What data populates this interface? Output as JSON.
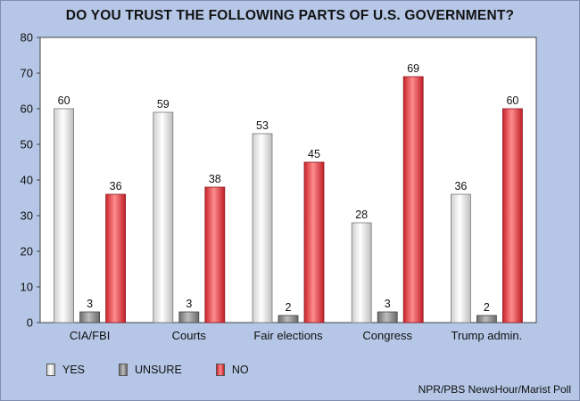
{
  "chart_data": {
    "type": "bar",
    "title": "DO YOU TRUST THE FOLLOWING PARTS OF U.S. GOVERNMENT?",
    "categories": [
      "CIA/FBI",
      "Courts",
      "Fair elections",
      "Congress",
      "Trump admin."
    ],
    "series": [
      {
        "name": "YES",
        "values": [
          60,
          59,
          53,
          28,
          36
        ],
        "color": "#f2f2f2"
      },
      {
        "name": "UNSURE",
        "values": [
          3,
          3,
          2,
          3,
          2
        ],
        "color": "#909090"
      },
      {
        "name": "NO",
        "values": [
          36,
          38,
          45,
          69,
          60
        ],
        "color": "#e8434a"
      }
    ],
    "ylim": [
      0,
      80
    ],
    "yticks": [
      0,
      10,
      20,
      30,
      40,
      50,
      60,
      70,
      80
    ],
    "legend_position": "bottom-left",
    "grid": false
  },
  "source": "NPR/PBS NewsHour/Marist Poll"
}
